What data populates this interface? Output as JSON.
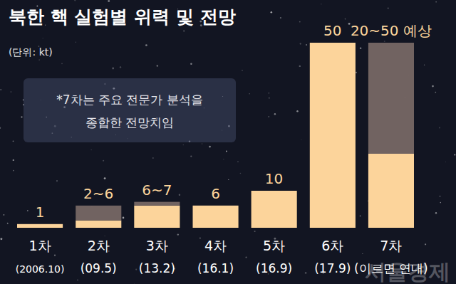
{
  "chart_data": {
    "type": "bar",
    "title": "북한 핵 실험별 위력 및 전망",
    "subtitle": "(단위: kt)",
    "note": [
      "*7차는 주요 전문가 분석을 종합한 전망치임",
      "종합한 전망치임"
    ],
    "categories": [
      "1차",
      "2차",
      "3차",
      "4차",
      "5차",
      "6차",
      "7차"
    ],
    "sublabels": [
      "(2006.10)",
      "(09.5)",
      "(13.2)",
      "(16.1)",
      "(16.9)",
      "(17.9)",
      "(이르면 연내)"
    ],
    "values": [
      1,
      2,
      6,
      6,
      10,
      50,
      20
    ],
    "upper": [
      null,
      6,
      7,
      null,
      null,
      null,
      50
    ],
    "value_labels": [
      "1",
      "2~6",
      "6~7",
      "6",
      "10",
      "50",
      "20~50 예상"
    ],
    "color": "#fcd49b",
    "ylim": [
      0,
      50
    ],
    "tick_labels": false,
    "data_labels": true,
    "watermark": "서울경제"
  }
}
